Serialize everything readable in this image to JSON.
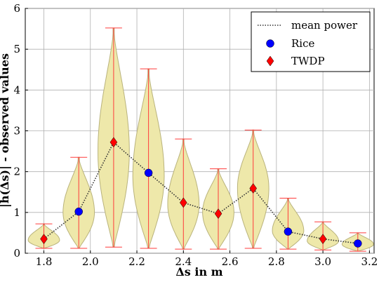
{
  "chart_data": {
    "type": "violin",
    "xlabel": "Δs in m",
    "ylabel": "|h(Δs)| - observed values",
    "xlim": [
      1.72,
      3.22
    ],
    "ylim": [
      0,
      6
    ],
    "xticks": [
      "1.8",
      "2.0",
      "2.2",
      "2.4",
      "2.6",
      "2.8",
      "3.0",
      "3.2"
    ],
    "yticks": [
      "0",
      "1",
      "2",
      "3",
      "4",
      "5",
      "6"
    ],
    "grid": true,
    "legend_position": "top-right",
    "violin_fill": "#eee8aa",
    "violin_edge": "#b9b37c",
    "whisker_color": "#ff3b3b",
    "violins": [
      {
        "x": 1.8,
        "min": 0.12,
        "max": 0.72,
        "median": 0.32
      },
      {
        "x": 1.95,
        "min": 0.12,
        "max": 2.35,
        "median": 1.0
      },
      {
        "x": 2.1,
        "min": 0.15,
        "max": 5.52,
        "median": 2.5
      },
      {
        "x": 2.25,
        "min": 0.12,
        "max": 4.52,
        "median": 1.9
      },
      {
        "x": 2.4,
        "min": 0.1,
        "max": 2.8,
        "median": 1.2
      },
      {
        "x": 2.55,
        "min": 0.1,
        "max": 2.07,
        "median": 1.0
      },
      {
        "x": 2.7,
        "min": 0.12,
        "max": 3.02,
        "median": 1.6
      },
      {
        "x": 2.85,
        "min": 0.1,
        "max": 1.35,
        "median": 0.55
      },
      {
        "x": 3.0,
        "min": 0.08,
        "max": 0.77,
        "median": 0.3
      },
      {
        "x": 3.15,
        "min": 0.05,
        "max": 0.5,
        "median": 0.22
      }
    ],
    "series": [
      {
        "name": "mean power",
        "style": "dotted-line",
        "color": "#333333",
        "x": [
          1.8,
          1.95,
          2.1,
          2.25,
          2.4,
          2.55,
          2.7,
          2.85,
          3.0,
          3.15
        ],
        "y": [
          0.35,
          1.02,
          2.72,
          1.97,
          1.24,
          0.97,
          1.59,
          0.53,
          0.35,
          0.24
        ]
      },
      {
        "name": "Rice",
        "style": "circle",
        "color": "#0000ff",
        "x": [
          1.95,
          2.25,
          2.85,
          3.15
        ],
        "y": [
          1.02,
          1.97,
          0.53,
          0.24
        ]
      },
      {
        "name": "TWDP",
        "style": "diamond",
        "color": "#ff0000",
        "x": [
          1.8,
          2.1,
          2.4,
          2.55,
          2.7,
          3.0
        ],
        "y": [
          0.35,
          2.72,
          1.24,
          0.97,
          1.59,
          0.35
        ]
      }
    ]
  }
}
